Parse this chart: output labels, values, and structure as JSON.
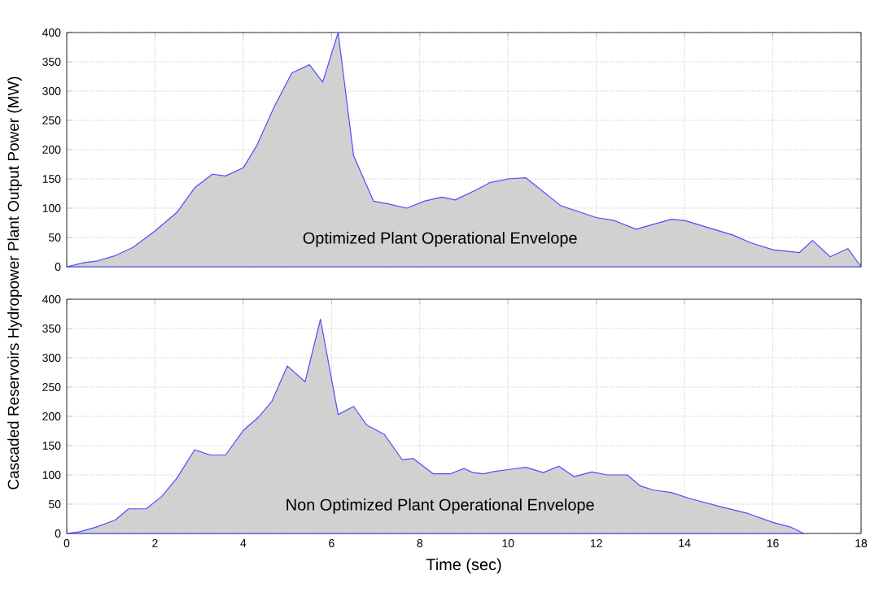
{
  "chart_data": [
    {
      "type": "area",
      "tick_labels": "y",
      "xlim": [
        0,
        18
      ],
      "ylim": [
        0,
        400
      ],
      "xticks": [
        0,
        2,
        4,
        6,
        8,
        10,
        12,
        14,
        16,
        18
      ],
      "yticks": [
        0,
        50,
        100,
        150,
        200,
        250,
        300,
        350,
        400
      ],
      "grid": true,
      "annotations": [
        "Optimized Plant Operational Envelope"
      ],
      "series": [
        {
          "color": "#4d4dff",
          "x": [
            0,
            0.4,
            0.7,
            1.1,
            1.5,
            2.0,
            2.5,
            2.9,
            3.3,
            3.6,
            4.0,
            4.3,
            4.7,
            5.1,
            5.5,
            5.8,
            6.15,
            6.5,
            6.95,
            7.3,
            7.7,
            8.1,
            8.5,
            8.8,
            9.3,
            9.6,
            10.0,
            10.4,
            11.2,
            12.0,
            12.4,
            12.9,
            13.7,
            14.0,
            15.1,
            15.5,
            16.0,
            16.6,
            16.9,
            17.3,
            17.7,
            18.0
          ],
          "values": [
            0,
            7,
            10,
            19,
            33,
            61,
            93,
            135,
            158,
            155,
            169,
            206,
            273,
            331,
            345,
            315,
            400,
            190,
            112,
            107,
            100,
            112,
            119,
            114,
            132,
            144,
            150,
            152,
            104,
            84,
            79,
            64,
            81,
            79,
            54,
            41,
            29,
            24,
            45,
            17,
            31,
            0
          ]
        }
      ]
    },
    {
      "type": "area",
      "xlabel": "Time (sec)",
      "ylabel": "Cascaded Reservoirs Hydropower Plant Output Power (MW)",
      "xlim": [
        0,
        18
      ],
      "ylim": [
        0,
        400
      ],
      "xticks": [
        0,
        2,
        4,
        6,
        8,
        10,
        12,
        14,
        16,
        18
      ],
      "yticks": [
        0,
        50,
        100,
        150,
        200,
        250,
        300,
        350,
        400
      ],
      "grid": true,
      "annotations": [
        "Non Optimized Plant Operational Envelope"
      ],
      "series": [
        {
          "color": "#4d4dff",
          "x": [
            0,
            0.3,
            0.67,
            1.1,
            1.4,
            1.8,
            2.15,
            2.5,
            2.9,
            3.25,
            3.6,
            4.0,
            4.35,
            4.65,
            5.0,
            5.4,
            5.75,
            6.15,
            6.5,
            6.8,
            7.2,
            7.6,
            7.85,
            8.3,
            8.7,
            9.0,
            9.2,
            9.45,
            9.7,
            10.0,
            10.4,
            10.8,
            11.15,
            11.5,
            11.9,
            12.25,
            12.7,
            13.0,
            13.3,
            13.7,
            14.1,
            14.8,
            15.4,
            16.0,
            16.4,
            16.7
          ],
          "values": [
            0,
            3,
            11,
            23,
            42,
            42,
            63,
            95,
            143,
            134,
            134,
            176,
            199,
            226,
            286,
            259,
            366,
            203,
            217,
            185,
            169,
            126,
            128,
            102,
            102,
            111,
            104,
            102,
            106,
            109,
            113,
            104,
            115,
            97,
            105,
            100,
            100,
            81,
            74,
            70,
            60,
            46,
            35,
            19,
            11,
            0
          ]
        }
      ]
    }
  ]
}
